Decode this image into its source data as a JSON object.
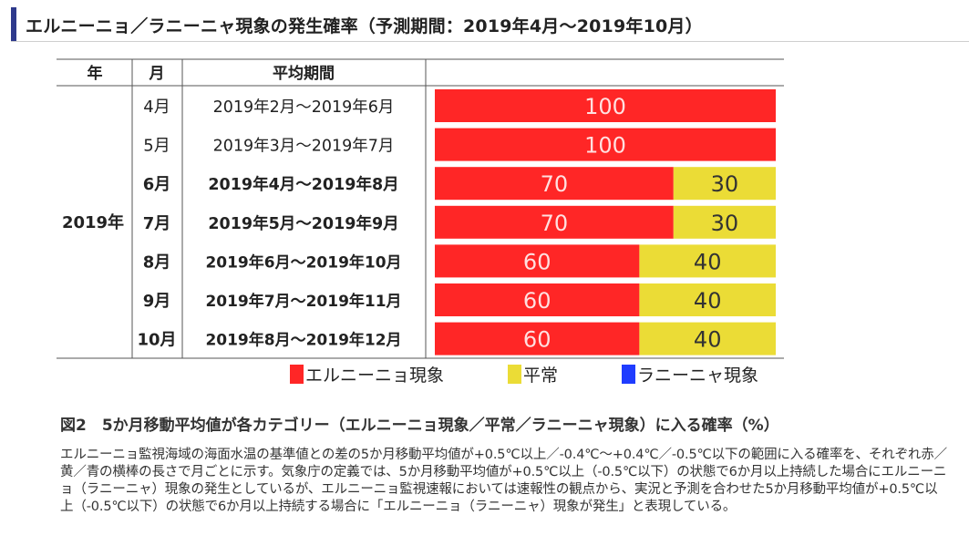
{
  "header": {
    "title": "エルニーニョ／ラニーニャ現象の発生確率（予測期間：2019年4月～2019年10月）"
  },
  "table": {
    "headers": {
      "year": "年",
      "month": "月",
      "period": "平均期間"
    },
    "year_label": "2019年",
    "rows": [
      {
        "month": "4月",
        "period": "2019年2月～2019年6月"
      },
      {
        "month": "5月",
        "period": "2019年3月～2019年7月"
      },
      {
        "month": "6月",
        "period": "2019年4月～2019年8月"
      },
      {
        "month": "7月",
        "period": "2019年5月～2019年9月"
      },
      {
        "month": "8月",
        "period": "2019年6月～2019年10月"
      },
      {
        "month": "9月",
        "period": "2019年7月～2019年11月"
      },
      {
        "month": "10月",
        "period": "2019年8月～2019年12月"
      }
    ]
  },
  "chart_data": {
    "type": "bar",
    "orientation": "horizontal",
    "stacked": true,
    "categories": [
      "4月",
      "5月",
      "6月",
      "7月",
      "8月",
      "9月",
      "10月"
    ],
    "series": [
      {
        "name": "エルニーニョ現象",
        "color": "#ff2626",
        "values": [
          100,
          100,
          70,
          70,
          60,
          60,
          60
        ]
      },
      {
        "name": "平常",
        "color": "#ebdc36",
        "values": [
          0,
          0,
          30,
          30,
          40,
          40,
          40
        ]
      },
      {
        "name": "ラニーニャ現象",
        "color": "#1f3cff",
        "values": [
          0,
          0,
          0,
          0,
          0,
          0,
          0
        ]
      }
    ],
    "xlim": [
      0,
      100
    ],
    "legend_position": "bottom"
  },
  "caption": "図2　5か月移動平均値が各カテゴリー（エルニーニョ現象／平常／ラニーニャ現象）に入る確率（%）",
  "description": "エルニーニョ監視海域の海面水温の基準値との差の5か月移動平均値が+0.5℃以上／-0.4℃～+0.4℃／-0.5℃以下の範囲に入る確率を、それぞれ赤／黄／青の横棒の長さで月ごとに示す。気象庁の定義では、5か月移動平均値が+0.5℃以上（-0.5℃以下）の状態で6か月以上持続した場合にエルニーニョ（ラニーニャ）現象の発生としているが、エルニーニョ監視速報においては速報性の観点から、実況と予測を合わせた5か月移動平均値が+0.5℃以上（-0.5℃以下）の状態で6か月以上持続する場合に「エルニーニョ（ラニーニャ）現象が発生」と表現している。"
}
